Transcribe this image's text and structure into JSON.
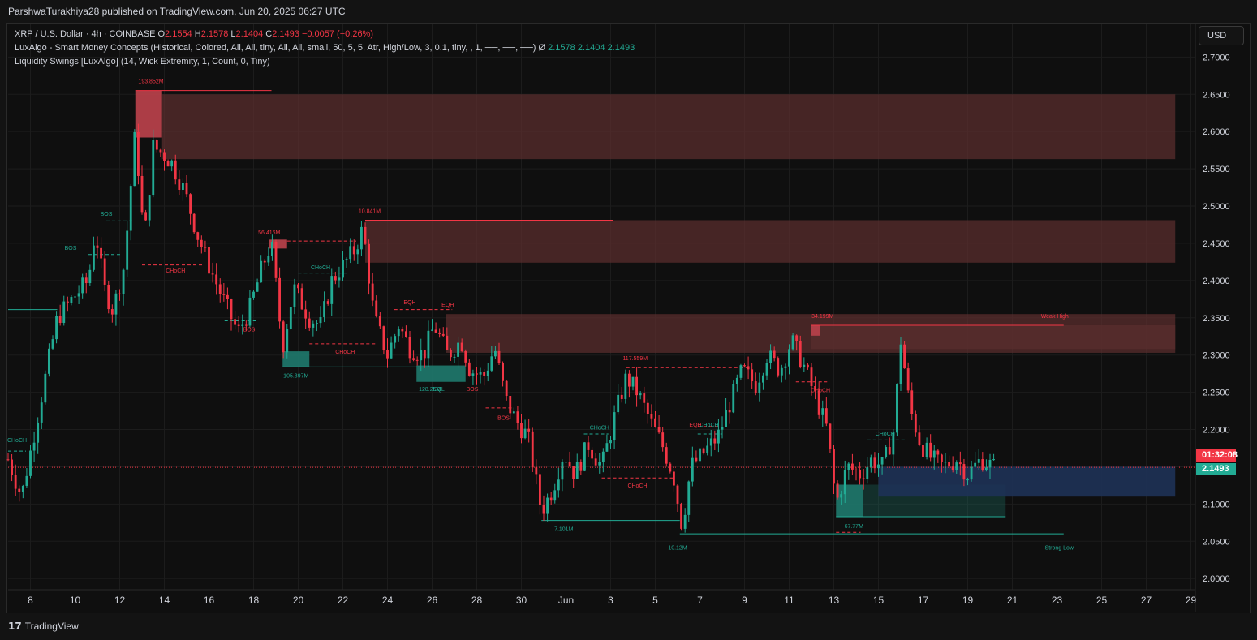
{
  "header": {
    "publisher_line": "ParshwaTurakhiya28 published on TradingView.com, Jun 20, 2025 06:27 UTC"
  },
  "legend": {
    "symbol": "XRP / U.S. Dollar · 4h · COINBASE",
    "o_label": "O",
    "o_value": "2.1554",
    "h_label": "H",
    "h_value": "2.1578",
    "l_label": "L",
    "l_value": "2.1404",
    "c_label": "C",
    "c_value": "2.1493",
    "change": "−0.0057 (−0.26%)",
    "indicator1": "LuxAlgo - Smart Money Concepts (Historical, Colored, All, All, tiny, All, All, small, 50, 5, 5, Atr, High/Low, 3, 0.1, tiny, , 1, ──, ──, ──)",
    "indicator1_symbol": "Ø",
    "indicator1_v1": "2.1578",
    "indicator1_v2": "2.1404",
    "indicator1_v3": "2.1493",
    "indicator2": "Liquidity Swings [LuxAlgo] (14, Wick Extremity, 1, Count, 0, Tiny)"
  },
  "currency_button": "USD",
  "price_tags": {
    "timer": "01:32:08",
    "last_price": "2.1493"
  },
  "footer": {
    "logo_glyph": "17",
    "logo_text": "TradingView"
  },
  "colors": {
    "up": "#22ab94",
    "down": "#f23645",
    "supply_zone": "#5a2e2e",
    "supply_strong": "#b5404a",
    "demand_zone": "#1f7a6e",
    "discount_zone": "#1e3256",
    "background": "#0f0f0f"
  },
  "chart_data": {
    "type": "candlestick",
    "symbol": "XRP/USD",
    "timeframe": "4h",
    "y_range": [
      1.985,
      2.745
    ],
    "y_ticks": [
      "2.0000",
      "2.0500",
      "2.1000",
      "2.1500",
      "2.2000",
      "2.2500",
      "2.3000",
      "2.3500",
      "2.4000",
      "2.4500",
      "2.5000",
      "2.5500",
      "2.6000",
      "2.6500",
      "2.7000"
    ],
    "x_range_days": [
      7.0,
      30.2
    ],
    "x_ticks": [
      {
        "d": 8,
        "label": "8"
      },
      {
        "d": 10,
        "label": "10"
      },
      {
        "d": 12,
        "label": "12"
      },
      {
        "d": 14,
        "label": "14"
      },
      {
        "d": 16,
        "label": "16"
      },
      {
        "d": 18,
        "label": "18"
      },
      {
        "d": 20,
        "label": "20"
      },
      {
        "d": 22,
        "label": "22"
      },
      {
        "d": 24,
        "label": "24"
      },
      {
        "d": 26,
        "label": "26"
      },
      {
        "d": 28,
        "label": "28"
      },
      {
        "d": 30,
        "label": "30"
      },
      {
        "d": 32,
        "label": "Jun"
      },
      {
        "d": 34,
        "label": "3"
      },
      {
        "d": 36,
        "label": "5"
      },
      {
        "d": 38,
        "label": "7"
      },
      {
        "d": 40,
        "label": "9"
      },
      {
        "d": 42,
        "label": "11"
      },
      {
        "d": 44,
        "label": "13"
      },
      {
        "d": 46,
        "label": "15"
      },
      {
        "d": 48,
        "label": "17"
      },
      {
        "d": 50,
        "label": "19"
      },
      {
        "d": 52,
        "label": "21"
      },
      {
        "d": 54,
        "label": "23"
      },
      {
        "d": 56,
        "label": "25"
      },
      {
        "d": 58,
        "label": "27"
      },
      {
        "d": 60,
        "label": "29"
      }
    ],
    "last_price": 2.1493,
    "anchors": [
      [
        7.0,
        2.16
      ],
      [
        7.6,
        2.11
      ],
      [
        8.0,
        2.17
      ],
      [
        8.6,
        2.26
      ],
      [
        9.2,
        2.35
      ],
      [
        10.0,
        2.38
      ],
      [
        10.6,
        2.4
      ],
      [
        10.9,
        2.47
      ],
      [
        11.3,
        2.39
      ],
      [
        11.7,
        2.36
      ],
      [
        12.2,
        2.42
      ],
      [
        12.7,
        2.6
      ],
      [
        13.1,
        2.45
      ],
      [
        13.5,
        2.58
      ],
      [
        14.3,
        2.56
      ],
      [
        14.9,
        2.52
      ],
      [
        15.5,
        2.46
      ],
      [
        16.0,
        2.42
      ],
      [
        16.7,
        2.37
      ],
      [
        17.3,
        2.33
      ],
      [
        17.8,
        2.36
      ],
      [
        18.4,
        2.42
      ],
      [
        18.8,
        2.45
      ],
      [
        19.3,
        2.31
      ],
      [
        19.8,
        2.39
      ],
      [
        20.5,
        2.35
      ],
      [
        21.0,
        2.34
      ],
      [
        21.5,
        2.4
      ],
      [
        22.0,
        2.42
      ],
      [
        22.5,
        2.44
      ],
      [
        22.9,
        2.47
      ],
      [
        23.4,
        2.35
      ],
      [
        24.0,
        2.3
      ],
      [
        24.5,
        2.34
      ],
      [
        25.0,
        2.31
      ],
      [
        25.6,
        2.3
      ],
      [
        26.1,
        2.34
      ],
      [
        26.7,
        2.3
      ],
      [
        27.3,
        2.32
      ],
      [
        27.7,
        2.28
      ],
      [
        28.3,
        2.27
      ],
      [
        28.8,
        2.31
      ],
      [
        29.3,
        2.24
      ],
      [
        29.8,
        2.21
      ],
      [
        30.3,
        2.19
      ],
      [
        30.9,
        2.09
      ],
      [
        31.4,
        2.12
      ],
      [
        31.9,
        2.17
      ],
      [
        32.4,
        2.14
      ],
      [
        33.0,
        2.18
      ],
      [
        33.6,
        2.15
      ],
      [
        34.2,
        2.22
      ],
      [
        34.7,
        2.27
      ],
      [
        35.2,
        2.25
      ],
      [
        35.8,
        2.21
      ],
      [
        36.3,
        2.18
      ],
      [
        36.8,
        2.14
      ],
      [
        37.2,
        2.07
      ],
      [
        37.6,
        2.15
      ],
      [
        38.2,
        2.17
      ],
      [
        38.8,
        2.19
      ],
      [
        39.4,
        2.24
      ],
      [
        39.9,
        2.28
      ],
      [
        40.5,
        2.26
      ],
      [
        41.0,
        2.3
      ],
      [
        41.6,
        2.28
      ],
      [
        42.1,
        2.32
      ],
      [
        42.6,
        2.29
      ],
      [
        43.1,
        2.25
      ],
      [
        43.7,
        2.2
      ],
      [
        44.1,
        2.1
      ],
      [
        44.6,
        2.15
      ],
      [
        45.2,
        2.14
      ],
      [
        45.7,
        2.16
      ],
      [
        46.2,
        2.15
      ],
      [
        46.7,
        2.2
      ],
      [
        47.0,
        2.32
      ],
      [
        47.4,
        2.23
      ],
      [
        47.9,
        2.18
      ],
      [
        48.4,
        2.16
      ],
      [
        48.9,
        2.15
      ],
      [
        49.5,
        2.16
      ],
      [
        50.0,
        2.14
      ],
      [
        50.6,
        2.16
      ],
      [
        51.2,
        2.149
      ]
    ],
    "zones": [
      {
        "x1": 12.7,
        "x2": 13.9,
        "y1": 2.592,
        "y2": 2.655,
        "kind": "supply_strong"
      },
      {
        "x1": 13.9,
        "x2": 59.3,
        "y1": 2.563,
        "y2": 2.65,
        "kind": "supply"
      },
      {
        "x1": 23.0,
        "x2": 59.3,
        "y1": 2.424,
        "y2": 2.481,
        "kind": "supply"
      },
      {
        "x1": 18.7,
        "x2": 19.5,
        "y1": 2.443,
        "y2": 2.455,
        "kind": "supply_strong"
      },
      {
        "x1": 26.6,
        "x2": 59.3,
        "y1": 2.303,
        "y2": 2.355,
        "kind": "supply"
      },
      {
        "x1": 43.0,
        "x2": 59.3,
        "y1": 2.308,
        "y2": 2.34,
        "kind": "supply"
      },
      {
        "x1": 43.0,
        "x2": 43.4,
        "y1": 2.326,
        "y2": 2.34,
        "kind": "supply_strong"
      },
      {
        "x1": 19.3,
        "x2": 20.5,
        "y1": 2.284,
        "y2": 2.305,
        "kind": "demand"
      },
      {
        "x1": 25.3,
        "x2": 27.5,
        "y1": 2.264,
        "y2": 2.286,
        "kind": "demand"
      },
      {
        "x1": 44.1,
        "x2": 45.3,
        "y1": 2.083,
        "y2": 2.126,
        "kind": "demand"
      },
      {
        "x1": 45.3,
        "x2": 51.7,
        "y1": 2.083,
        "y2": 2.126,
        "kind": "demand_faint"
      },
      {
        "x1": 46.0,
        "x2": 59.3,
        "y1": 2.11,
        "y2": 2.15,
        "kind": "discount"
      }
    ],
    "lines": [
      {
        "x1": 12.7,
        "x2": 18.8,
        "y1": 2.655,
        "y2": 2.655,
        "color": "down",
        "dash": false
      },
      {
        "x1": 23.0,
        "x2": 34.1,
        "y1": 2.481,
        "y2": 2.481,
        "color": "down",
        "dash": false
      },
      {
        "x1": 43.0,
        "x2": 54.3,
        "y1": 2.34,
        "y2": 2.34,
        "color": "down",
        "dash": false
      },
      {
        "x1": 7.0,
        "x2": 9.2,
        "y1": 2.361,
        "y2": 2.361,
        "color": "up",
        "dash": false
      },
      {
        "x1": 19.3,
        "x2": 25.9,
        "y1": 2.284,
        "y2": 2.284,
        "color": "up",
        "dash": false
      },
      {
        "x1": 30.9,
        "x2": 37.1,
        "y1": 2.078,
        "y2": 2.078,
        "color": "up",
        "dash": false
      },
      {
        "x1": 37.1,
        "x2": 54.3,
        "y1": 2.06,
        "y2": 2.06,
        "color": "up",
        "dash": false
      },
      {
        "x1": 44.1,
        "x2": 51.7,
        "y1": 2.083,
        "y2": 2.083,
        "color": "up",
        "dash": false
      },
      {
        "x1": 10.6,
        "x2": 12.1,
        "y1": 2.435,
        "y2": 2.435,
        "color": "up",
        "dash": true
      },
      {
        "x1": 11.4,
        "x2": 12.6,
        "y1": 2.48,
        "y2": 2.48,
        "color": "up",
        "dash": true
      },
      {
        "x1": 13.0,
        "x2": 15.7,
        "y1": 2.421,
        "y2": 2.421,
        "color": "down",
        "dash": true
      },
      {
        "x1": 19.5,
        "x2": 22.6,
        "y1": 2.453,
        "y2": 2.453,
        "color": "down",
        "dash": true
      },
      {
        "x1": 20.0,
        "x2": 22.2,
        "y1": 2.41,
        "y2": 2.41,
        "color": "up",
        "dash": true
      },
      {
        "x1": 20.5,
        "x2": 23.5,
        "y1": 2.315,
        "y2": 2.315,
        "color": "down",
        "dash": true
      },
      {
        "x1": 16.7,
        "x2": 18.1,
        "y1": 2.346,
        "y2": 2.346,
        "color": "up",
        "dash": true
      },
      {
        "x1": 24.3,
        "x2": 25.6,
        "y1": 2.361,
        "y2": 2.361,
        "color": "down",
        "dash": true
      },
      {
        "x1": 25.6,
        "x2": 26.9,
        "y1": 2.361,
        "y2": 2.361,
        "color": "down",
        "dash": true
      },
      {
        "x1": 28.4,
        "x2": 29.6,
        "y1": 2.229,
        "y2": 2.229,
        "color": "down",
        "dash": true
      },
      {
        "x1": 34.7,
        "x2": 40.1,
        "y1": 2.283,
        "y2": 2.283,
        "color": "down",
        "dash": true
      },
      {
        "x1": 32.8,
        "x2": 33.9,
        "y1": 2.194,
        "y2": 2.194,
        "color": "up",
        "dash": true
      },
      {
        "x1": 33.6,
        "x2": 36.9,
        "y1": 2.135,
        "y2": 2.135,
        "color": "down",
        "dash": true
      },
      {
        "x1": 37.9,
        "x2": 39.0,
        "y1": 2.194,
        "y2": 2.194,
        "color": "up",
        "dash": true
      },
      {
        "x1": 37.9,
        "x2": 38.9,
        "y1": 2.204,
        "y2": 2.204,
        "color": "down",
        "dash": true
      },
      {
        "x1": 42.3,
        "x2": 43.7,
        "y1": 2.264,
        "y2": 2.264,
        "color": "down",
        "dash": true
      },
      {
        "x1": 45.5,
        "x2": 47.2,
        "y1": 2.186,
        "y2": 2.186,
        "color": "up",
        "dash": true
      },
      {
        "x1": 7.0,
        "x2": 7.8,
        "y1": 2.171,
        "y2": 2.171,
        "color": "up",
        "dash": true
      },
      {
        "x1": 44.1,
        "x2": 45.2,
        "y1": 2.062,
        "y2": 2.062,
        "color": "down",
        "dash": true
      }
    ],
    "annotations": [
      {
        "t": "193.852M",
        "x": 13.4,
        "y": 2.665,
        "color": "down"
      },
      {
        "t": "10.841M",
        "x": 23.2,
        "y": 2.491,
        "color": "down"
      },
      {
        "t": "56.416M",
        "x": 18.7,
        "y": 2.462,
        "color": "down"
      },
      {
        "t": "34.199M",
        "x": 43.5,
        "y": 2.35,
        "color": "down"
      },
      {
        "t": "Weak High",
        "x": 53.9,
        "y": 2.35,
        "color": "down"
      },
      {
        "t": "117.559M",
        "x": 35.1,
        "y": 2.293,
        "color": "down"
      },
      {
        "t": "105.397M",
        "x": 19.9,
        "y": 2.27,
        "color": "up"
      },
      {
        "t": "128.25M",
        "x": 25.9,
        "y": 2.252,
        "color": "up"
      },
      {
        "t": "7.101M",
        "x": 31.9,
        "y": 2.064,
        "color": "up"
      },
      {
        "t": "10.12M",
        "x": 37.0,
        "y": 2.039,
        "color": "up"
      },
      {
        "t": "67.77M",
        "x": 44.9,
        "y": 2.068,
        "color": "up"
      },
      {
        "t": "Strong Low",
        "x": 54.1,
        "y": 2.039,
        "color": "up"
      },
      {
        "t": "BOS",
        "x": 11.4,
        "y": 2.487,
        "color": "up"
      },
      {
        "t": "BOS",
        "x": 9.8,
        "y": 2.441,
        "color": "up"
      },
      {
        "t": "CHoCH",
        "x": 14.5,
        "y": 2.411,
        "color": "down"
      },
      {
        "t": "CHoCH",
        "x": 21.0,
        "y": 2.415,
        "color": "up"
      },
      {
        "t": "BOS",
        "x": 17.8,
        "y": 2.332,
        "color": "down"
      },
      {
        "t": "CHoCH",
        "x": 22.1,
        "y": 2.302,
        "color": "down"
      },
      {
        "t": "EQH",
        "x": 25.0,
        "y": 2.368,
        "color": "down"
      },
      {
        "t": "EQH",
        "x": 26.7,
        "y": 2.365,
        "color": "down"
      },
      {
        "t": "EQL",
        "x": 26.3,
        "y": 2.252,
        "color": "up"
      },
      {
        "t": "BOS",
        "x": 27.8,
        "y": 2.252,
        "color": "down"
      },
      {
        "t": "BOS",
        "x": 29.2,
        "y": 2.213,
        "color": "down"
      },
      {
        "t": "CHoCH",
        "x": 33.5,
        "y": 2.2,
        "color": "up"
      },
      {
        "t": "CHoCH",
        "x": 35.2,
        "y": 2.122,
        "color": "down"
      },
      {
        "t": "EQH",
        "x": 37.8,
        "y": 2.204,
        "color": "down"
      },
      {
        "t": "CHoCH",
        "x": 38.4,
        "y": 2.204,
        "color": "up"
      },
      {
        "t": "CHoCH",
        "x": 43.4,
        "y": 2.25,
        "color": "down"
      },
      {
        "t": "CHoCH",
        "x": 46.3,
        "y": 2.192,
        "color": "up"
      },
      {
        "t": "CHoCH",
        "x": 7.4,
        "y": 2.183,
        "color": "up"
      }
    ]
  }
}
